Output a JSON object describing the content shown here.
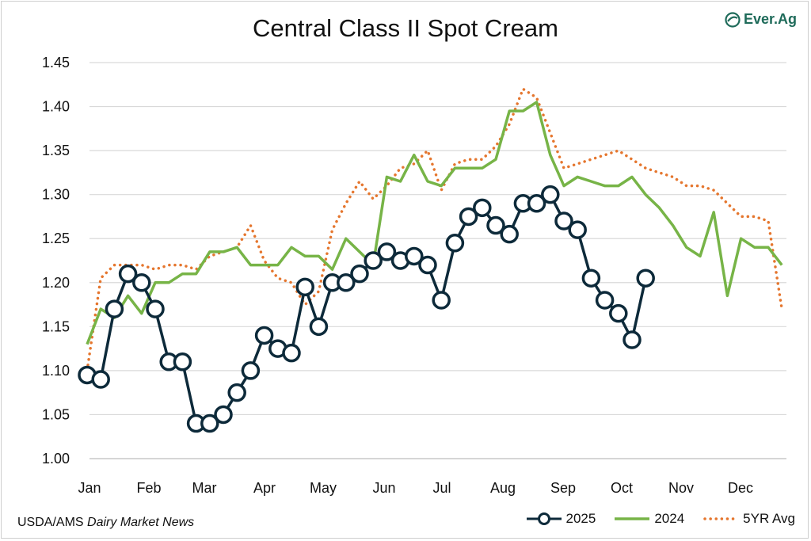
{
  "chart_data": {
    "type": "line",
    "title": "Central Class II Spot Cream",
    "xlabel": "",
    "ylabel": "",
    "ylim": [
      1.0,
      1.45
    ],
    "yticks": [
      "1.00",
      "1.05",
      "1.10",
      "1.15",
      "1.20",
      "1.25",
      "1.30",
      "1.35",
      "1.40",
      "1.45"
    ],
    "month_labels": [
      "Jan",
      "Feb",
      "Mar",
      "Apr",
      "May",
      "Jun",
      "Jul",
      "Aug",
      "Sep",
      "Oct",
      "Nov",
      "Dec"
    ],
    "x_unit": "week of year",
    "grid": "horizontal",
    "legend_position": "bottom-right",
    "series": [
      {
        "name": "2025",
        "color": "#0d2a3a",
        "style": "solid-markers",
        "x": [
          1,
          2,
          3,
          4,
          5,
          6,
          7,
          8,
          9,
          10,
          11,
          12,
          13,
          14,
          15,
          16,
          17,
          18,
          19,
          20,
          21,
          22,
          23,
          24,
          25,
          26,
          27,
          28,
          29,
          30,
          31,
          32,
          33,
          34,
          35,
          36,
          37,
          38,
          39,
          40,
          41,
          42
        ],
        "y": [
          1.095,
          1.09,
          1.17,
          1.21,
          1.2,
          1.17,
          1.11,
          1.11,
          1.04,
          1.04,
          1.05,
          1.075,
          1.1,
          1.14,
          1.125,
          1.12,
          1.195,
          1.15,
          1.2,
          1.2,
          1.21,
          1.225,
          1.235,
          1.225,
          1.23,
          1.22,
          1.18,
          1.245,
          1.275,
          1.285,
          1.265,
          1.255,
          1.29,
          1.29,
          1.3,
          1.27,
          1.26,
          1.205,
          1.18,
          1.165,
          1.135,
          1.205
        ]
      },
      {
        "name": "2024",
        "color": "#77b447",
        "style": "solid",
        "x": [
          1,
          2,
          3,
          4,
          5,
          6,
          7,
          8,
          9,
          10,
          11,
          12,
          13,
          14,
          15,
          16,
          17,
          18,
          19,
          20,
          21,
          22,
          23,
          24,
          25,
          26,
          27,
          28,
          29,
          30,
          31,
          32,
          33,
          34,
          35,
          36,
          37,
          38,
          39,
          40,
          41,
          42,
          43,
          44,
          45,
          46,
          47,
          48,
          49,
          50,
          51,
          52
        ],
        "y": [
          1.13,
          1.17,
          1.16,
          1.185,
          1.165,
          1.2,
          1.2,
          1.21,
          1.21,
          1.235,
          1.235,
          1.24,
          1.22,
          1.22,
          1.22,
          1.24,
          1.23,
          1.23,
          1.215,
          1.25,
          1.235,
          1.22,
          1.32,
          1.315,
          1.345,
          1.315,
          1.31,
          1.33,
          1.33,
          1.33,
          1.34,
          1.395,
          1.395,
          1.405,
          1.345,
          1.31,
          1.32,
          1.315,
          1.31,
          1.31,
          1.32,
          1.3,
          1.285,
          1.265,
          1.24,
          1.23,
          1.28,
          1.185,
          1.25,
          1.24,
          1.24,
          1.22
        ]
      },
      {
        "name": "5YR Avg",
        "color": "#e5762e",
        "style": "dotted",
        "x": [
          1,
          2,
          3,
          4,
          5,
          6,
          7,
          8,
          9,
          10,
          11,
          12,
          13,
          14,
          15,
          16,
          17,
          18,
          19,
          20,
          21,
          22,
          23,
          24,
          25,
          26,
          27,
          28,
          29,
          30,
          31,
          32,
          33,
          34,
          35,
          36,
          37,
          38,
          39,
          40,
          41,
          42,
          43,
          44,
          45,
          46,
          47,
          48,
          49,
          50,
          51,
          52
        ],
        "y": [
          1.1,
          1.205,
          1.22,
          1.22,
          1.22,
          1.215,
          1.22,
          1.22,
          1.215,
          1.23,
          1.235,
          1.24,
          1.265,
          1.225,
          1.205,
          1.2,
          1.175,
          1.19,
          1.26,
          1.29,
          1.315,
          1.295,
          1.31,
          1.33,
          1.335,
          1.35,
          1.305,
          1.335,
          1.34,
          1.34,
          1.355,
          1.38,
          1.42,
          1.41,
          1.37,
          1.33,
          1.335,
          1.34,
          1.345,
          1.35,
          1.34,
          1.33,
          1.325,
          1.32,
          1.31,
          1.31,
          1.305,
          1.29,
          1.275,
          1.275,
          1.27,
          1.17
        ]
      }
    ]
  },
  "logo_text": "Ever.Ag",
  "source": {
    "agency": "USDA/AMS",
    "publication": "Dairy Market News"
  }
}
